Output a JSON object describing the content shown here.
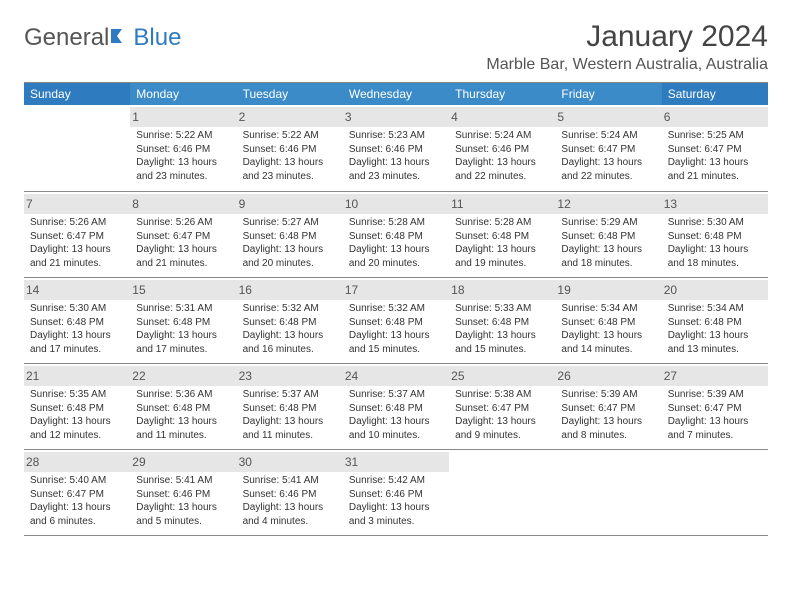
{
  "logo": {
    "part1": "General",
    "part2": "Blue"
  },
  "title": "January 2024",
  "location": "Marble Bar, Western Australia, Australia",
  "dayHeaders": [
    "Sunday",
    "Monday",
    "Tuesday",
    "Wednesday",
    "Thursday",
    "Friday",
    "Saturday"
  ],
  "colors": {
    "headerNormal": "#3b8bc8",
    "headerWeekend": "#2f7bbf",
    "shade": "#e6e6e6"
  },
  "startDayIndex": 1,
  "daysInMonth": 31,
  "days": [
    {
      "n": 1,
      "sunrise": "5:22 AM",
      "sunset": "6:46 PM",
      "daylight": "13 hours and 23 minutes."
    },
    {
      "n": 2,
      "sunrise": "5:22 AM",
      "sunset": "6:46 PM",
      "daylight": "13 hours and 23 minutes."
    },
    {
      "n": 3,
      "sunrise": "5:23 AM",
      "sunset": "6:46 PM",
      "daylight": "13 hours and 23 minutes."
    },
    {
      "n": 4,
      "sunrise": "5:24 AM",
      "sunset": "6:46 PM",
      "daylight": "13 hours and 22 minutes."
    },
    {
      "n": 5,
      "sunrise": "5:24 AM",
      "sunset": "6:47 PM",
      "daylight": "13 hours and 22 minutes."
    },
    {
      "n": 6,
      "sunrise": "5:25 AM",
      "sunset": "6:47 PM",
      "daylight": "13 hours and 21 minutes."
    },
    {
      "n": 7,
      "sunrise": "5:26 AM",
      "sunset": "6:47 PM",
      "daylight": "13 hours and 21 minutes."
    },
    {
      "n": 8,
      "sunrise": "5:26 AM",
      "sunset": "6:47 PM",
      "daylight": "13 hours and 21 minutes."
    },
    {
      "n": 9,
      "sunrise": "5:27 AM",
      "sunset": "6:48 PM",
      "daylight": "13 hours and 20 minutes."
    },
    {
      "n": 10,
      "sunrise": "5:28 AM",
      "sunset": "6:48 PM",
      "daylight": "13 hours and 20 minutes."
    },
    {
      "n": 11,
      "sunrise": "5:28 AM",
      "sunset": "6:48 PM",
      "daylight": "13 hours and 19 minutes."
    },
    {
      "n": 12,
      "sunrise": "5:29 AM",
      "sunset": "6:48 PM",
      "daylight": "13 hours and 18 minutes."
    },
    {
      "n": 13,
      "sunrise": "5:30 AM",
      "sunset": "6:48 PM",
      "daylight": "13 hours and 18 minutes."
    },
    {
      "n": 14,
      "sunrise": "5:30 AM",
      "sunset": "6:48 PM",
      "daylight": "13 hours and 17 minutes."
    },
    {
      "n": 15,
      "sunrise": "5:31 AM",
      "sunset": "6:48 PM",
      "daylight": "13 hours and 17 minutes."
    },
    {
      "n": 16,
      "sunrise": "5:32 AM",
      "sunset": "6:48 PM",
      "daylight": "13 hours and 16 minutes."
    },
    {
      "n": 17,
      "sunrise": "5:32 AM",
      "sunset": "6:48 PM",
      "daylight": "13 hours and 15 minutes."
    },
    {
      "n": 18,
      "sunrise": "5:33 AM",
      "sunset": "6:48 PM",
      "daylight": "13 hours and 15 minutes."
    },
    {
      "n": 19,
      "sunrise": "5:34 AM",
      "sunset": "6:48 PM",
      "daylight": "13 hours and 14 minutes."
    },
    {
      "n": 20,
      "sunrise": "5:34 AM",
      "sunset": "6:48 PM",
      "daylight": "13 hours and 13 minutes."
    },
    {
      "n": 21,
      "sunrise": "5:35 AM",
      "sunset": "6:48 PM",
      "daylight": "13 hours and 12 minutes."
    },
    {
      "n": 22,
      "sunrise": "5:36 AM",
      "sunset": "6:48 PM",
      "daylight": "13 hours and 11 minutes."
    },
    {
      "n": 23,
      "sunrise": "5:37 AM",
      "sunset": "6:48 PM",
      "daylight": "13 hours and 11 minutes."
    },
    {
      "n": 24,
      "sunrise": "5:37 AM",
      "sunset": "6:48 PM",
      "daylight": "13 hours and 10 minutes."
    },
    {
      "n": 25,
      "sunrise": "5:38 AM",
      "sunset": "6:47 PM",
      "daylight": "13 hours and 9 minutes."
    },
    {
      "n": 26,
      "sunrise": "5:39 AM",
      "sunset": "6:47 PM",
      "daylight": "13 hours and 8 minutes."
    },
    {
      "n": 27,
      "sunrise": "5:39 AM",
      "sunset": "6:47 PM",
      "daylight": "13 hours and 7 minutes."
    },
    {
      "n": 28,
      "sunrise": "5:40 AM",
      "sunset": "6:47 PM",
      "daylight": "13 hours and 6 minutes."
    },
    {
      "n": 29,
      "sunrise": "5:41 AM",
      "sunset": "6:46 PM",
      "daylight": "13 hours and 5 minutes."
    },
    {
      "n": 30,
      "sunrise": "5:41 AM",
      "sunset": "6:46 PM",
      "daylight": "13 hours and 4 minutes."
    },
    {
      "n": 31,
      "sunrise": "5:42 AM",
      "sunset": "6:46 PM",
      "daylight": "13 hours and 3 minutes."
    }
  ],
  "labels": {
    "sunrisePrefix": "Sunrise: ",
    "sunsetPrefix": "Sunset: ",
    "daylightPrefix": "Daylight: "
  }
}
